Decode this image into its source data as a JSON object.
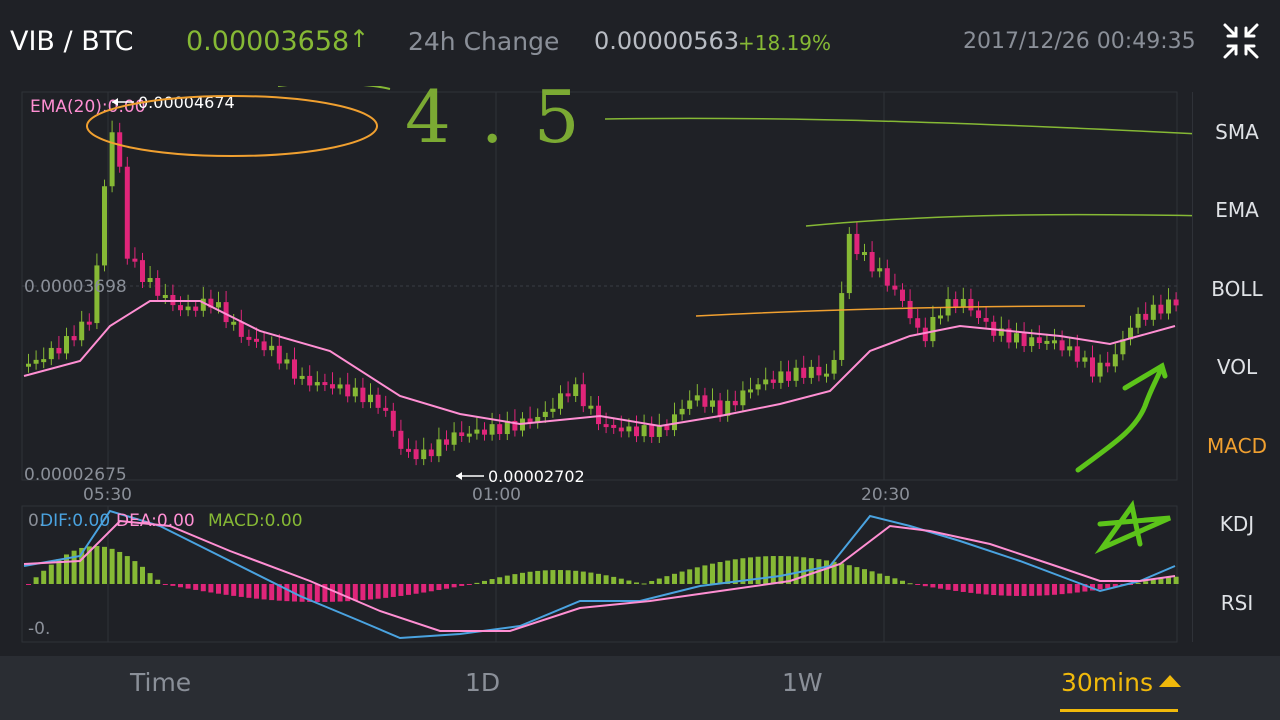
{
  "header": {
    "pair": "VIB / BTC",
    "last_price": "0.00003658",
    "price_arrow": "↑",
    "change_label": "24h Change",
    "change_value": "0.00000563",
    "change_percent": "+18.19%",
    "timestamp": "2017/12/26 00:49:35",
    "fullscreen_icon": "collapse-arrows-icon"
  },
  "main_chart": {
    "ema_label": "EMA(20):0.00",
    "high_label": "0.00004674",
    "low_label": "0.00002702",
    "y_labels": [
      "0.00003698",
      "0.00002675"
    ],
    "time_labels": [
      "05:30",
      "01:00",
      "20:30"
    ],
    "ema_color": "#ff8fd3",
    "up_color": "#86b935",
    "down_color": "#e0257a"
  },
  "macd_panel": {
    "dif_label": "DIF:0.00",
    "dea_label": "DEA:0.00",
    "macd_label": "MACD:0.00",
    "top_value": "0.",
    "bottom_value": "-0.",
    "dif_color": "#4aa3e0",
    "dea_color": "#ff8fd3",
    "macd_color": "#86b935"
  },
  "annotation": {
    "handwritten_text": "4.5"
  },
  "side_menu": [
    {
      "label": "SMA",
      "active": false
    },
    {
      "label": "EMA",
      "active": false
    },
    {
      "label": "BOLL",
      "active": false
    },
    {
      "label": "VOL",
      "active": false
    },
    {
      "label": "MACD",
      "active": true
    },
    {
      "label": "KDJ",
      "active": false
    },
    {
      "label": "RSI",
      "active": false
    }
  ],
  "footer_tabs": [
    {
      "label": "Time",
      "active": false
    },
    {
      "label": "1D",
      "active": false
    },
    {
      "label": "1W",
      "active": false
    },
    {
      "label": "30mins",
      "active": true
    }
  ],
  "accent_color": "#f0b90b"
}
